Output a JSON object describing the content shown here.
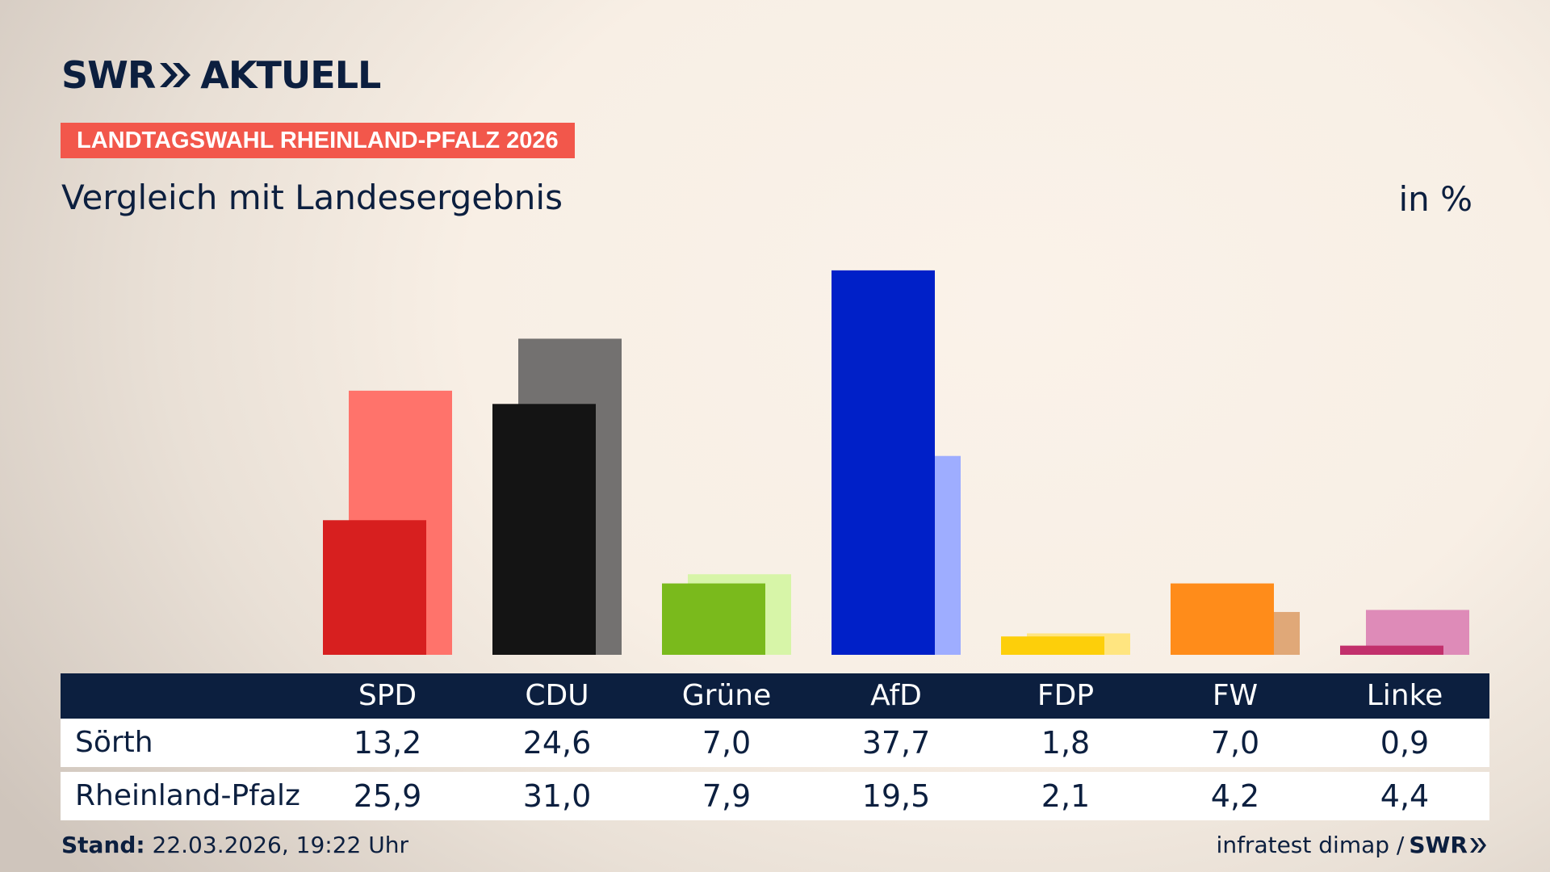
{
  "header": {
    "logo_text_left": "SWR",
    "logo_text_right": "AKTUELL",
    "badge": "LANDTAGSWAHL RHEINLAND-PFALZ 2026",
    "subtitle": "Vergleich mit Landesergebnis",
    "unit": "in %"
  },
  "chart_data": {
    "type": "bar",
    "categories": [
      "SPD",
      "CDU",
      "Grüne",
      "AfD",
      "FDP",
      "FW",
      "Linke"
    ],
    "series": [
      {
        "name": "Sörth",
        "values": [
          13.2,
          24.6,
          7.0,
          37.7,
          1.8,
          7.0,
          0.9
        ]
      },
      {
        "name": "Rheinland-Pfalz",
        "values": [
          25.9,
          31.0,
          7.9,
          19.5,
          2.1,
          4.2,
          4.4
        ]
      }
    ],
    "value_labels": [
      [
        "13,2",
        "24,6",
        "7,0",
        "37,7",
        "1,8",
        "7,0",
        "0,9"
      ],
      [
        "25,9",
        "31,0",
        "7,9",
        "19,5",
        "2,1",
        "4,2",
        "4,4"
      ]
    ],
    "colors_primary": [
      "#d71f1f",
      "#141414",
      "#7aba1c",
      "#0020c8",
      "#fdcf0a",
      "#ff8c1a",
      "#c2306c"
    ],
    "colors_secondary": [
      "#ff736b",
      "#737170",
      "#d7f5a8",
      "#9eadff",
      "#ffe580",
      "#e0a878",
      "#de8bb8"
    ],
    "title": "Vergleich mit Landesergebnis",
    "unit": "in %"
  },
  "footer": {
    "stand_label": "Stand:",
    "stand_value": "22.03.2026, 19:22 Uhr",
    "source": "infratest dimap /",
    "source_logo": "SWR"
  }
}
